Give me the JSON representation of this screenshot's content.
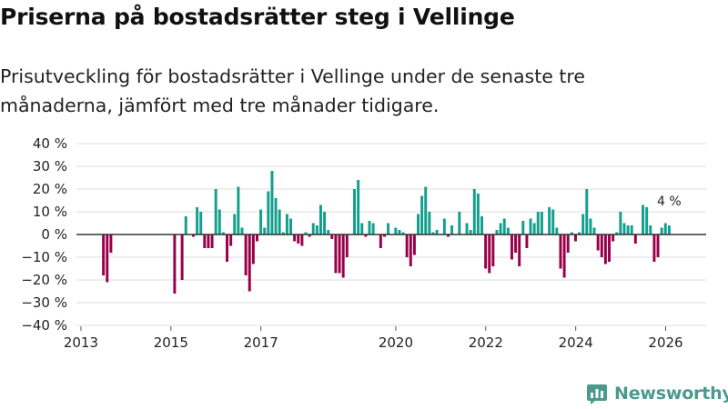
{
  "header": {
    "title": "Priserna på bostadsrätter steg i Vellinge",
    "subtitle": "Prisutveckling för bostadsrätter i Vellinge under de senaste tre månaderna, jämfört med tre månader tidigare."
  },
  "brand": {
    "name": "Newsworthy"
  },
  "colors": {
    "positive": "#139f8d",
    "negative": "#98004a",
    "grid": "#dddddd",
    "zero": "#333333",
    "brand": "#4a9a8e"
  },
  "chart_data": {
    "type": "bar",
    "title": "Priserna på bostadsrätter steg i Vellinge",
    "xlabel": "",
    "ylabel": "",
    "ylim": [
      -40,
      40
    ],
    "yticks": [
      40,
      30,
      20,
      10,
      0,
      -10,
      -20,
      -30,
      -40
    ],
    "ytick_labels": [
      "40 %",
      "30 %",
      "20 %",
      "10 %",
      "0 %",
      "−10 %",
      "−20 %",
      "−30 %",
      "−40 %"
    ],
    "xticks": [
      2013,
      2015,
      2017,
      2020,
      2022,
      2024,
      2026
    ],
    "xlim": [
      2012.9,
      2026.9
    ],
    "grid": true,
    "series": [
      {
        "name": "Prisutveckling",
        "unit": "%",
        "start": 2013.5,
        "step": 0.0833,
        "values": [
          -18,
          -21,
          -8,
          null,
          null,
          null,
          null,
          null,
          null,
          null,
          null,
          null,
          null,
          null,
          null,
          null,
          null,
          null,
          null,
          -26,
          null,
          -20,
          8,
          0,
          -1,
          12,
          10,
          -6,
          -6,
          -6,
          20,
          11,
          1,
          -12,
          -5,
          9,
          21,
          3,
          -18,
          -25,
          -13,
          -3,
          11,
          3,
          19,
          28,
          16,
          11,
          1,
          9,
          7,
          -3,
          -4,
          -5,
          1,
          -1,
          5,
          4,
          13,
          10,
          2,
          -2,
          -17,
          -17,
          -19,
          -10,
          null,
          20,
          24,
          5,
          -1,
          6,
          5,
          null,
          -6,
          -1,
          5,
          null,
          3,
          2,
          1,
          -10,
          -14,
          -9,
          9,
          17,
          21,
          10,
          1,
          2,
          null,
          7,
          -1,
          4,
          null,
          10,
          null,
          5,
          2,
          20,
          18,
          8,
          -15,
          -17,
          -14,
          2,
          5,
          7,
          3,
          -11,
          -8,
          -14,
          6,
          -6,
          7,
          5,
          10,
          10,
          null,
          12,
          11,
          3,
          -15,
          -19,
          -8,
          1,
          -3,
          1,
          9,
          20,
          7,
          3,
          -7,
          -10,
          -13,
          -12,
          -3,
          1,
          10,
          5,
          4,
          4,
          -4,
          null,
          13,
          12,
          4,
          -12,
          -10,
          3,
          5,
          4
        ]
      }
    ],
    "annotations": [
      {
        "label": "4 %"
      }
    ]
  }
}
